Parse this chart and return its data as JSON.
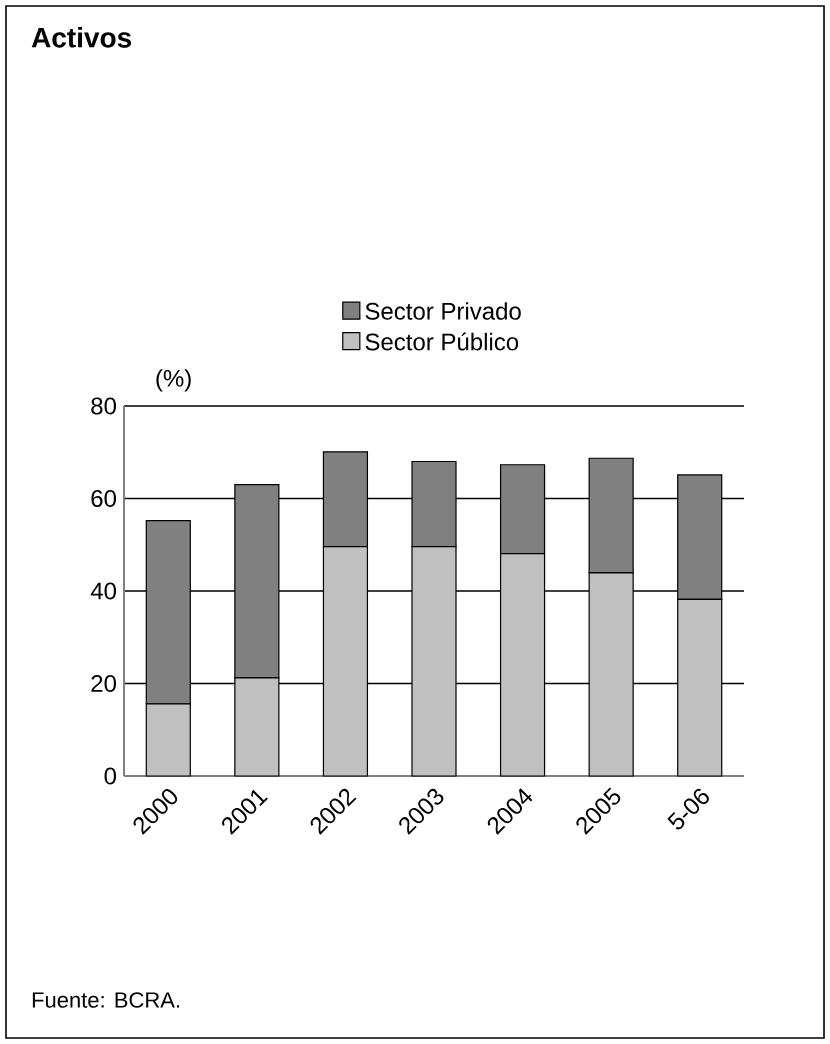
{
  "chart_data": {
    "type": "bar",
    "title": "Activos",
    "ylabel": "(%)",
    "stacked": true,
    "categories": [
      "2000",
      "2001",
      "2002",
      "2003",
      "2004",
      "2005",
      "5-06"
    ],
    "series": [
      {
        "name": "Sector Público",
        "color": "#c0c0c0",
        "values": [
          15.6,
          21.2,
          49.6,
          49.6,
          48.1,
          43.9,
          38.2
        ]
      },
      {
        "name": "Sector Privado",
        "color": "#808080",
        "values": [
          39.6,
          41.8,
          20.5,
          18.4,
          19.2,
          24.8,
          26.9
        ]
      }
    ],
    "ylim": [
      0,
      80
    ],
    "yticks": [
      0,
      20,
      40,
      60,
      80
    ],
    "grid": "y",
    "legend": "top",
    "annotations": [
      "Fuente: BCRA."
    ]
  }
}
